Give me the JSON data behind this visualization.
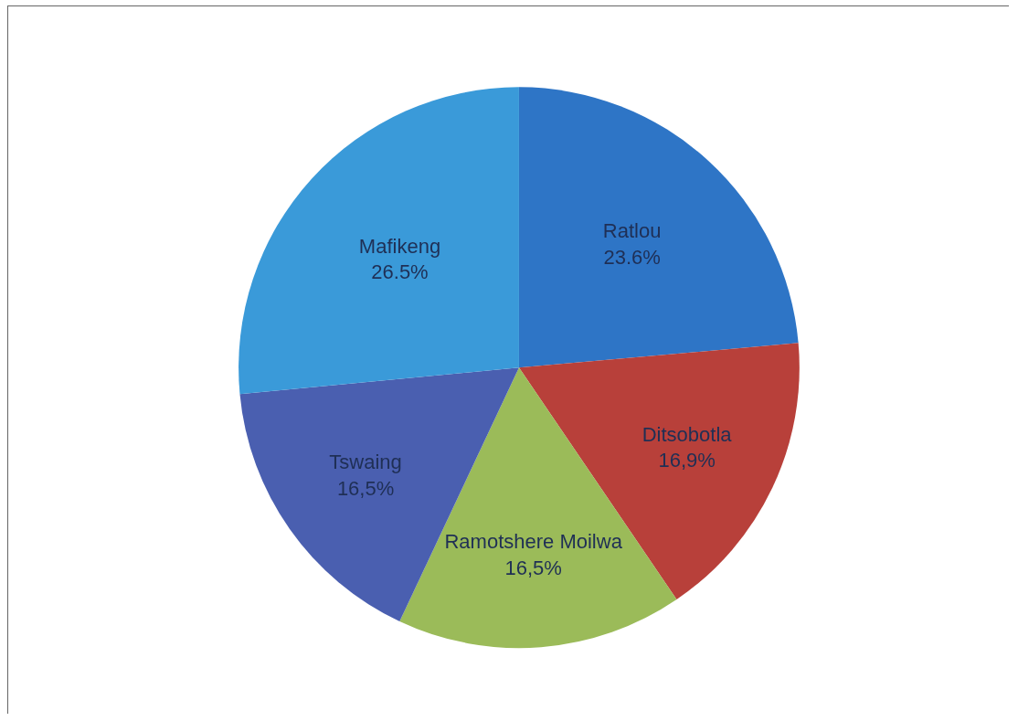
{
  "chart_data": {
    "type": "pie",
    "categories": [
      "Ratlou",
      "Ditsobotla",
      "Ramotshere Moilwa",
      "Tswaing",
      "Mafikeng"
    ],
    "values": [
      23.6,
      16.9,
      16.5,
      16.5,
      26.5
    ],
    "colors": [
      "#2e75c6",
      "#b8403a",
      "#9bbb59",
      "#4a5fb0",
      "#3a9ad9"
    ],
    "value_labels": [
      "23.6%",
      "16,9%",
      "16,5%",
      "16,5%",
      "26.5%"
    ],
    "legend": false
  }
}
